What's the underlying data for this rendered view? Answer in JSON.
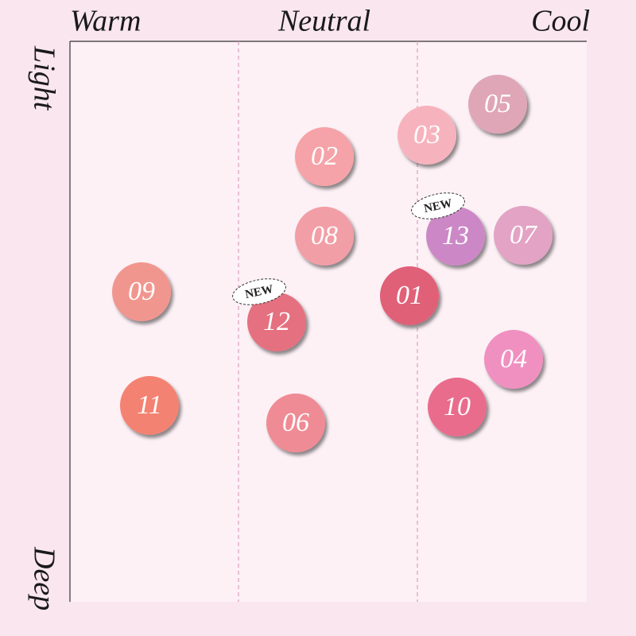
{
  "axis": {
    "warm": "Warm",
    "neutral": "Neutral",
    "cool": "Cool",
    "light": "Light",
    "deep": "Deep"
  },
  "badge": "NEW",
  "swatches": [
    {
      "label": "02",
      "color": "#f5a3a8"
    },
    {
      "label": "03",
      "color": "#f7b3bd"
    },
    {
      "label": "05",
      "color": "#dfa6b8"
    },
    {
      "label": "08",
      "color": "#f29ea6"
    },
    {
      "label": "13",
      "color": "#cc88c6",
      "new": true
    },
    {
      "label": "07",
      "color": "#e3a3c4"
    },
    {
      "label": "09",
      "color": "#f1968e"
    },
    {
      "label": "01",
      "color": "#e06078"
    },
    {
      "label": "12",
      "color": "#e5707f",
      "new": true
    },
    {
      "label": "04",
      "color": "#f090c0"
    },
    {
      "label": "11",
      "color": "#f48272"
    },
    {
      "label": "06",
      "color": "#ef8b95"
    },
    {
      "label": "10",
      "color": "#e96c8c"
    }
  ]
}
